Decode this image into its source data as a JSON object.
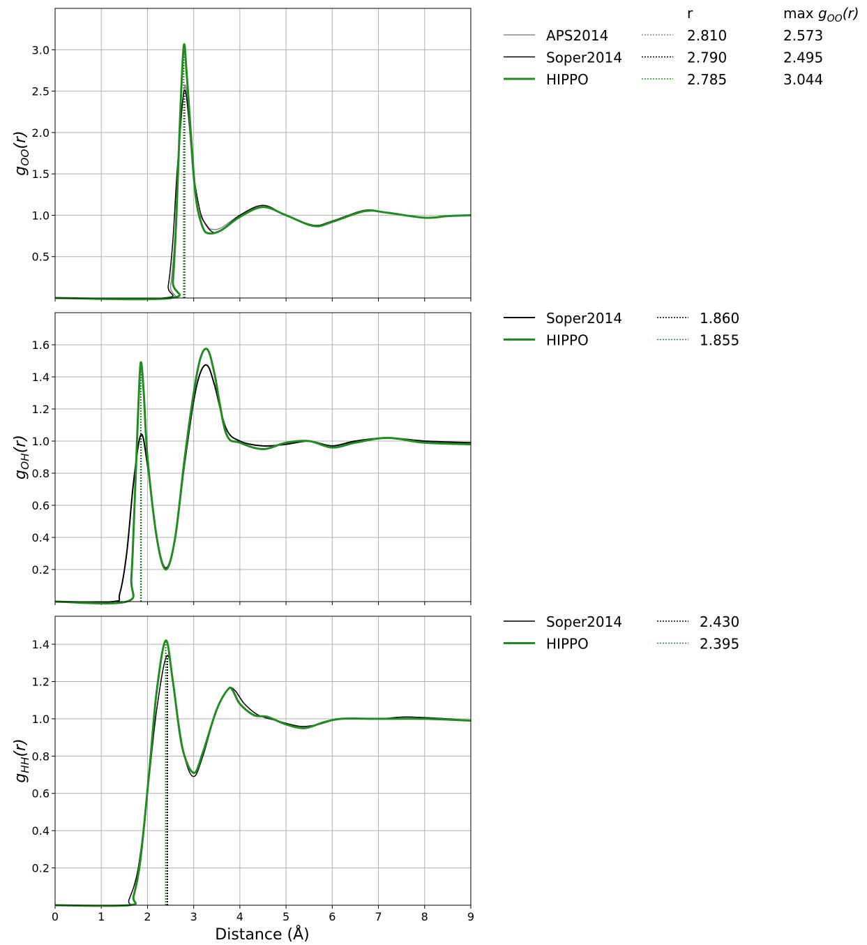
{
  "colors": {
    "aps": "#888888",
    "soper": "#000000",
    "hippo": "#228B22",
    "grid": "#b0b0b0"
  },
  "xaxis": {
    "label": "Distance (Å)",
    "ticks": [
      0,
      1,
      2,
      3,
      4,
      5,
      6,
      7,
      8,
      9
    ],
    "xlim": [
      0,
      9
    ]
  },
  "chart_data": [
    {
      "type": "line",
      "ylabel": {
        "base": "g",
        "sub": "OO",
        "arg": "(r)"
      },
      "ylim": [
        0,
        3.5
      ],
      "yticks": [
        0.5,
        1.0,
        1.5,
        2.0,
        2.5,
        3.0
      ],
      "legend": {
        "headers": {
          "r": "r",
          "max": "max g",
          "max_sub": "OO",
          "max_arg": "(r)"
        },
        "entries": [
          {
            "name": "APS2014",
            "r": "2.810",
            "max": "2.573",
            "color": "#888888",
            "width": 1.5
          },
          {
            "name": "Soper2014",
            "r": "2.790",
            "max": "2.495",
            "color": "#000000",
            "width": 1.5
          },
          {
            "name": "HIPPO",
            "r": "2.785",
            "max": "3.044",
            "color": "#228B22",
            "width": 3
          }
        ]
      },
      "peaks": [
        {
          "series": "APS2014",
          "r": 2.81,
          "max": 2.573
        },
        {
          "series": "Soper2014",
          "r": 2.79,
          "max": 2.495
        },
        {
          "series": "HIPPO",
          "r": 2.785,
          "max": 3.044
        }
      ],
      "series": [
        {
          "name": "APS2014",
          "points": [
            [
              0,
              0
            ],
            [
              2.4,
              0
            ],
            [
              2.5,
              0.15
            ],
            [
              2.6,
              0.8
            ],
            [
              2.7,
              1.9
            ],
            [
              2.81,
              2.573
            ],
            [
              2.9,
              2.1
            ],
            [
              3.0,
              1.4
            ],
            [
              3.1,
              1.05
            ],
            [
              3.3,
              0.87
            ],
            [
              3.4,
              0.83
            ],
            [
              3.6,
              0.85
            ],
            [
              4.0,
              1.0
            ],
            [
              4.5,
              1.1
            ],
            [
              5.0,
              1.0
            ],
            [
              5.6,
              0.88
            ],
            [
              6.0,
              0.93
            ],
            [
              6.7,
              1.05
            ],
            [
              7.2,
              1.03
            ],
            [
              8.0,
              0.97
            ],
            [
              8.5,
              0.99
            ],
            [
              9.0,
              1.0
            ]
          ]
        },
        {
          "name": "Soper2014",
          "points": [
            [
              0,
              0
            ],
            [
              2.35,
              0
            ],
            [
              2.45,
              0.15
            ],
            [
              2.55,
              0.7
            ],
            [
              2.65,
              1.6
            ],
            [
              2.79,
              2.495
            ],
            [
              2.9,
              2.15
            ],
            [
              3.0,
              1.5
            ],
            [
              3.1,
              1.15
            ],
            [
              3.2,
              0.95
            ],
            [
              3.4,
              0.8
            ],
            [
              3.6,
              0.82
            ],
            [
              4.0,
              1.0
            ],
            [
              4.5,
              1.12
            ],
            [
              5.0,
              1.0
            ],
            [
              5.6,
              0.88
            ],
            [
              6.0,
              0.93
            ],
            [
              6.7,
              1.06
            ],
            [
              7.2,
              1.03
            ],
            [
              8.0,
              0.97
            ],
            [
              8.5,
              0.99
            ],
            [
              9.0,
              1.0
            ]
          ]
        },
        {
          "name": "HIPPO",
          "points": [
            [
              0,
              0
            ],
            [
              2.5,
              0
            ],
            [
              2.55,
              0.2
            ],
            [
              2.62,
              0.9
            ],
            [
              2.7,
              2.1
            ],
            [
              2.785,
              3.044
            ],
            [
              2.85,
              2.7
            ],
            [
              2.95,
              1.9
            ],
            [
              3.05,
              1.2
            ],
            [
              3.2,
              0.85
            ],
            [
              3.35,
              0.78
            ],
            [
              3.6,
              0.82
            ],
            [
              4.0,
              0.98
            ],
            [
              4.5,
              1.1
            ],
            [
              5.0,
              1.0
            ],
            [
              5.6,
              0.87
            ],
            [
              6.0,
              0.92
            ],
            [
              6.7,
              1.05
            ],
            [
              7.2,
              1.03
            ],
            [
              8.0,
              0.97
            ],
            [
              8.5,
              0.99
            ],
            [
              9.0,
              1.0
            ]
          ]
        }
      ]
    },
    {
      "type": "line",
      "ylabel": {
        "base": "g",
        "sub": "OH",
        "arg": "(r)"
      },
      "ylim": [
        0,
        1.8
      ],
      "yticks": [
        0.2,
        0.4,
        0.6,
        0.8,
        1.0,
        1.2,
        1.4,
        1.6
      ],
      "legend": {
        "entries": [
          {
            "name": "Soper2014",
            "r": "1.860",
            "color": "#000000",
            "width": 2
          },
          {
            "name": "HIPPO",
            "r": "1.855",
            "color": "#228B22",
            "width": 3
          }
        ]
      },
      "peaks": [
        {
          "series": "Soper2014",
          "r": 1.86,
          "max": 1.04
        },
        {
          "series": "HIPPO",
          "r": 1.855,
          "max": 1.49
        }
      ],
      "series": [
        {
          "name": "Soper2014",
          "points": [
            [
              0,
              0
            ],
            [
              1.25,
              0
            ],
            [
              1.4,
              0.05
            ],
            [
              1.55,
              0.3
            ],
            [
              1.7,
              0.75
            ],
            [
              1.86,
              1.04
            ],
            [
              2.0,
              0.85
            ],
            [
              2.2,
              0.4
            ],
            [
              2.4,
              0.21
            ],
            [
              2.6,
              0.4
            ],
            [
              2.8,
              0.85
            ],
            [
              3.0,
              1.25
            ],
            [
              3.15,
              1.43
            ],
            [
              3.3,
              1.47
            ],
            [
              3.45,
              1.35
            ],
            [
              3.7,
              1.08
            ],
            [
              4.0,
              1.0
            ],
            [
              4.5,
              0.97
            ],
            [
              5.0,
              0.98
            ],
            [
              5.5,
              1.0
            ],
            [
              6.0,
              0.97
            ],
            [
              6.5,
              1.0
            ],
            [
              7.2,
              1.02
            ],
            [
              8.0,
              1.0
            ],
            [
              9.0,
              0.99
            ]
          ]
        },
        {
          "name": "HIPPO",
          "points": [
            [
              0,
              0
            ],
            [
              1.55,
              0
            ],
            [
              1.65,
              0.15
            ],
            [
              1.72,
              0.6
            ],
            [
              1.8,
              1.2
            ],
            [
              1.855,
              1.49
            ],
            [
              1.92,
              1.3
            ],
            [
              2.0,
              0.9
            ],
            [
              2.2,
              0.4
            ],
            [
              2.4,
              0.2
            ],
            [
              2.6,
              0.4
            ],
            [
              2.8,
              0.88
            ],
            [
              3.0,
              1.3
            ],
            [
              3.15,
              1.52
            ],
            [
              3.3,
              1.57
            ],
            [
              3.45,
              1.42
            ],
            [
              3.7,
              1.05
            ],
            [
              4.0,
              0.99
            ],
            [
              4.5,
              0.95
            ],
            [
              5.0,
              0.99
            ],
            [
              5.5,
              1.0
            ],
            [
              6.0,
              0.96
            ],
            [
              6.5,
              0.99
            ],
            [
              7.2,
              1.02
            ],
            [
              8.0,
              0.99
            ],
            [
              9.0,
              0.98
            ]
          ]
        }
      ]
    },
    {
      "type": "line",
      "ylabel": {
        "base": "g",
        "sub": "HH",
        "arg": "(r)"
      },
      "xlabel": "Distance (Å)",
      "ylim": [
        0,
        1.55
      ],
      "yticks": [
        0.2,
        0.4,
        0.6,
        0.8,
        1.0,
        1.2,
        1.4
      ],
      "legend": {
        "entries": [
          {
            "name": "Soper2014",
            "r": "2.430",
            "color": "#000000",
            "width": 1.5
          },
          {
            "name": "HIPPO",
            "r": "2.395",
            "color": "#228B22",
            "width": 3
          }
        ]
      },
      "peaks": [
        {
          "series": "Soper2014",
          "r": 2.43,
          "max": 1.34
        },
        {
          "series": "HIPPO",
          "r": 2.395,
          "max": 1.42
        }
      ],
      "series": [
        {
          "name": "Soper2014",
          "points": [
            [
              0,
              0
            ],
            [
              1.5,
              0
            ],
            [
              1.6,
              0.03
            ],
            [
              1.8,
              0.2
            ],
            [
              2.0,
              0.6
            ],
            [
              2.2,
              1.05
            ],
            [
              2.43,
              1.34
            ],
            [
              2.6,
              1.1
            ],
            [
              2.8,
              0.8
            ],
            [
              3.0,
              0.69
            ],
            [
              3.2,
              0.8
            ],
            [
              3.5,
              1.05
            ],
            [
              3.75,
              1.16
            ],
            [
              3.9,
              1.15
            ],
            [
              4.1,
              1.08
            ],
            [
              4.4,
              1.02
            ],
            [
              4.8,
              0.99
            ],
            [
              5.3,
              0.96
            ],
            [
              5.7,
              0.97
            ],
            [
              6.2,
              1.0
            ],
            [
              7.0,
              1.0
            ],
            [
              7.6,
              1.01
            ],
            [
              8.5,
              1.0
            ],
            [
              9.0,
              0.99
            ]
          ]
        },
        {
          "name": "HIPPO",
          "points": [
            [
              0,
              0
            ],
            [
              1.6,
              0
            ],
            [
              1.7,
              0.05
            ],
            [
              1.85,
              0.25
            ],
            [
              2.05,
              0.75
            ],
            [
              2.2,
              1.15
            ],
            [
              2.395,
              1.42
            ],
            [
              2.55,
              1.2
            ],
            [
              2.75,
              0.85
            ],
            [
              3.0,
              0.71
            ],
            [
              3.2,
              0.82
            ],
            [
              3.5,
              1.05
            ],
            [
              3.75,
              1.16
            ],
            [
              3.85,
              1.15
            ],
            [
              4.0,
              1.08
            ],
            [
              4.3,
              1.02
            ],
            [
              4.6,
              1.01
            ],
            [
              5.0,
              0.97
            ],
            [
              5.4,
              0.95
            ],
            [
              5.8,
              0.98
            ],
            [
              6.2,
              1.0
            ],
            [
              7.0,
              1.0
            ],
            [
              8.0,
              1.0
            ],
            [
              9.0,
              0.99
            ]
          ]
        }
      ]
    }
  ]
}
